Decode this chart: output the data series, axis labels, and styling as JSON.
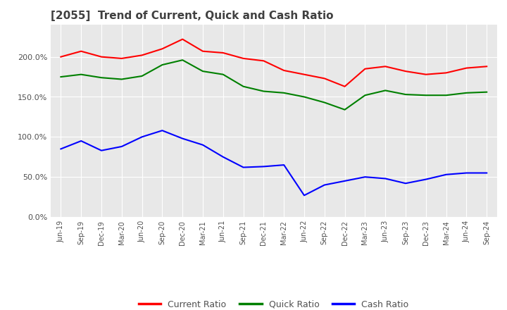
{
  "title": "[2055]  Trend of Current, Quick and Cash Ratio",
  "title_fontsize": 11,
  "title_color": "#404040",
  "ylim": [
    0.0,
    240.0
  ],
  "yticks": [
    0.0,
    50.0,
    100.0,
    150.0,
    200.0
  ],
  "ytick_labels": [
    "0.0%",
    "50.0%",
    "100.0%",
    "150.0%",
    "200.0%"
  ],
  "background_color": "#ffffff",
  "plot_bg_color": "#e8e8e8",
  "grid_color": "#ffffff",
  "x_labels": [
    "Jun-19",
    "Sep-19",
    "Dec-19",
    "Mar-20",
    "Jun-20",
    "Sep-20",
    "Dec-20",
    "Mar-21",
    "Jun-21",
    "Sep-21",
    "Dec-21",
    "Mar-22",
    "Jun-22",
    "Sep-22",
    "Dec-22",
    "Mar-23",
    "Jun-23",
    "Sep-23",
    "Dec-23",
    "Mar-24",
    "Jun-24",
    "Sep-24"
  ],
  "current_ratio": [
    200.0,
    207.0,
    200.0,
    198.0,
    202.0,
    210.0,
    222.0,
    207.0,
    205.0,
    198.0,
    195.0,
    183.0,
    178.0,
    173.0,
    163.0,
    185.0,
    188.0,
    182.0,
    178.0,
    180.0,
    186.0,
    188.0
  ],
  "quick_ratio": [
    175.0,
    178.0,
    174.0,
    172.0,
    176.0,
    190.0,
    196.0,
    182.0,
    178.0,
    163.0,
    157.0,
    155.0,
    150.0,
    143.0,
    134.0,
    152.0,
    158.0,
    153.0,
    152.0,
    152.0,
    155.0,
    156.0
  ],
  "cash_ratio": [
    85.0,
    95.0,
    83.0,
    88.0,
    100.0,
    108.0,
    98.0,
    90.0,
    75.0,
    62.0,
    63.0,
    65.0,
    27.0,
    40.0,
    45.0,
    50.0,
    48.0,
    42.0,
    47.0,
    53.0,
    55.0,
    55.0
  ],
  "current_color": "#ff0000",
  "quick_color": "#008000",
  "cash_color": "#0000ff",
  "line_width": 1.5,
  "legend_labels": [
    "Current Ratio",
    "Quick Ratio",
    "Cash Ratio"
  ]
}
